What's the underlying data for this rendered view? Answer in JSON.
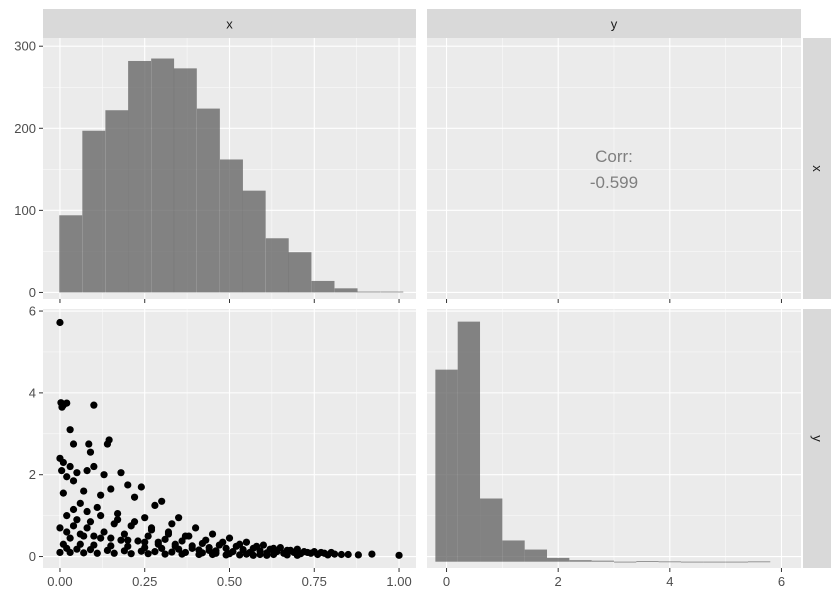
{
  "chart_data": {
    "type": "pairs",
    "variables": [
      "x",
      "y"
    ],
    "top_strips": [
      "x",
      "y"
    ],
    "right_strips": [
      "x",
      "y"
    ],
    "panels": {
      "x_histogram": {
        "type": "bar",
        "bin_width": 0.0676,
        "bin_starts": [
          -0.002,
          0.066,
          0.134,
          0.201,
          0.269,
          0.336,
          0.404,
          0.472,
          0.539,
          0.607,
          0.674,
          0.742,
          0.81,
          0.877,
          0.945
        ],
        "counts": [
          94,
          197,
          222,
          282,
          285,
          273,
          224,
          162,
          124,
          66,
          49,
          14,
          5,
          1,
          1
        ],
        "xlim": [
          -0.05,
          1.05
        ],
        "ylim": [
          -8,
          310
        ],
        "y_ticks": [
          0,
          100,
          200,
          300
        ],
        "x_ticks": [
          0.0,
          0.25,
          0.5,
          0.75,
          1.0
        ]
      },
      "correlation": {
        "label": "Corr:",
        "value": "-0.599",
        "x_ticks": [
          0,
          2,
          4,
          6
        ],
        "xlim": [
          -0.35,
          6.35
        ]
      },
      "scatter": {
        "type": "scatter",
        "xlim": [
          -0.05,
          1.05
        ],
        "ylim": [
          -0.28,
          6.05
        ],
        "x_ticks": [
          0.0,
          0.25,
          0.5,
          0.75,
          1.0
        ],
        "x_tick_labels": [
          "0.00",
          "0.25",
          "0.50",
          "0.75",
          "1.00"
        ],
        "y_ticks": [
          0,
          2,
          4,
          6
        ],
        "points_x": [
          0.0,
          0.003,
          0.01,
          0.02,
          0.006,
          0.03,
          0.1,
          0.04,
          0.085,
          0.14,
          0.09,
          0.145,
          0.0,
          0.01,
          0.03,
          0.05,
          0.005,
          0.02,
          0.04,
          0.08,
          0.1,
          0.13,
          0.15,
          0.2,
          0.24,
          0.18,
          0.3,
          0.07,
          0.12,
          0.22,
          0.28,
          0.35,
          0.01,
          0.06,
          0.11,
          0.17,
          0.25,
          0.33,
          0.4,
          0.45,
          0.5,
          0.55,
          0.6,
          0.65,
          0.7,
          0.75,
          0.8,
          0.83,
          0.85,
          0.88,
          0.92,
          1.0,
          0.02,
          0.05,
          0.09,
          0.16,
          0.21,
          0.27,
          0.32,
          0.38,
          0.43,
          0.48,
          0.53,
          0.58,
          0.63,
          0.68,
          0.72,
          0.77,
          0.0,
          0.04,
          0.08,
          0.13,
          0.19,
          0.26,
          0.31,
          0.36,
          0.42,
          0.47,
          0.52,
          0.57,
          0.62,
          0.67,
          0.73,
          0.78,
          0.81,
          0.03,
          0.07,
          0.12,
          0.18,
          0.23,
          0.29,
          0.34,
          0.39,
          0.44,
          0.49,
          0.54,
          0.59,
          0.64,
          0.69,
          0.74,
          0.01,
          0.06,
          0.1,
          0.15,
          0.2,
          0.25,
          0.3,
          0.35,
          0.41,
          0.46,
          0.51,
          0.56,
          0.61,
          0.66,
          0.71,
          0.76,
          0.79,
          0.02,
          0.05,
          0.09,
          0.14,
          0.19,
          0.24,
          0.28,
          0.33,
          0.37,
          0.42,
          0.46,
          0.5,
          0.55,
          0.59,
          0.63,
          0.67,
          0.7,
          0.0,
          0.03,
          0.07,
          0.11,
          0.16,
          0.21,
          0.26,
          0.31,
          0.36,
          0.41,
          0.45,
          0.49,
          0.53,
          0.57,
          0.61,
          0.04,
          0.08,
          0.12,
          0.17,
          0.22,
          0.27,
          0.32,
          0.37,
          0.02,
          0.06,
          0.1,
          0.15,
          0.2,
          0.25,
          0.29,
          0.34,
          0.39,
          0.44
        ],
        "points_y": [
          5.72,
          3.76,
          3.7,
          3.75,
          3.65,
          3.1,
          3.7,
          2.75,
          2.75,
          2.75,
          2.55,
          2.85,
          2.4,
          2.3,
          2.2,
          2.05,
          2.1,
          1.95,
          1.85,
          2.1,
          2.2,
          2.0,
          1.65,
          1.75,
          1.7,
          2.05,
          1.35,
          1.6,
          1.5,
          1.45,
          1.25,
          0.95,
          1.55,
          1.3,
          1.2,
          1.05,
          0.95,
          0.8,
          0.7,
          0.55,
          0.45,
          0.35,
          0.28,
          0.22,
          0.18,
          0.12,
          0.1,
          0.05,
          0.05,
          0.04,
          0.06,
          0.03,
          1.0,
          0.9,
          0.85,
          0.8,
          0.75,
          0.65,
          0.55,
          0.5,
          0.4,
          0.35,
          0.3,
          0.25,
          0.2,
          0.15,
          0.12,
          0.1,
          0.7,
          0.75,
          0.7,
          0.6,
          0.55,
          0.5,
          0.42,
          0.38,
          0.32,
          0.28,
          0.25,
          0.2,
          0.18,
          0.15,
          0.1,
          0.08,
          0.06,
          0.45,
          0.5,
          0.45,
          0.4,
          0.38,
          0.35,
          0.3,
          0.26,
          0.22,
          0.2,
          0.17,
          0.14,
          0.12,
          0.1,
          0.08,
          0.3,
          0.3,
          0.28,
          0.26,
          0.25,
          0.22,
          0.2,
          0.18,
          0.16,
          0.14,
          0.12,
          0.1,
          0.09,
          0.08,
          0.07,
          0.05,
          0.04,
          0.2,
          0.18,
          0.17,
          0.15,
          0.14,
          0.13,
          0.12,
          0.11,
          0.1,
          0.09,
          0.08,
          0.07,
          0.06,
          0.05,
          0.05,
          0.04,
          0.03,
          0.1,
          0.1,
          0.09,
          0.08,
          0.08,
          0.07,
          0.07,
          0.06,
          0.06,
          0.05,
          0.05,
          0.04,
          0.04,
          0.03,
          0.03,
          1.15,
          1.1,
          1.0,
          0.9,
          0.85,
          0.7,
          0.6,
          0.5,
          0.6,
          0.55,
          0.5,
          0.45,
          0.4,
          0.35,
          0.3,
          0.25,
          0.2,
          0.15
        ]
      },
      "y_histogram": {
        "type": "bar",
        "bin_width": 0.4,
        "bin_starts": [
          -0.2,
          0.2,
          0.6,
          1.0,
          1.4,
          1.8,
          2.2,
          2.6,
          3.0,
          3.4,
          3.8,
          4.2,
          4.6,
          5.0,
          5.4
        ],
        "counts": [
          760,
          950,
          250,
          84,
          48,
          15,
          6,
          4,
          0,
          2,
          1,
          0,
          0,
          0,
          1
        ],
        "xlim": [
          -0.35,
          6.35
        ],
        "ylim": [
          -25,
          1000
        ],
        "x_ticks": [
          0,
          2,
          4,
          6
        ]
      }
    }
  }
}
